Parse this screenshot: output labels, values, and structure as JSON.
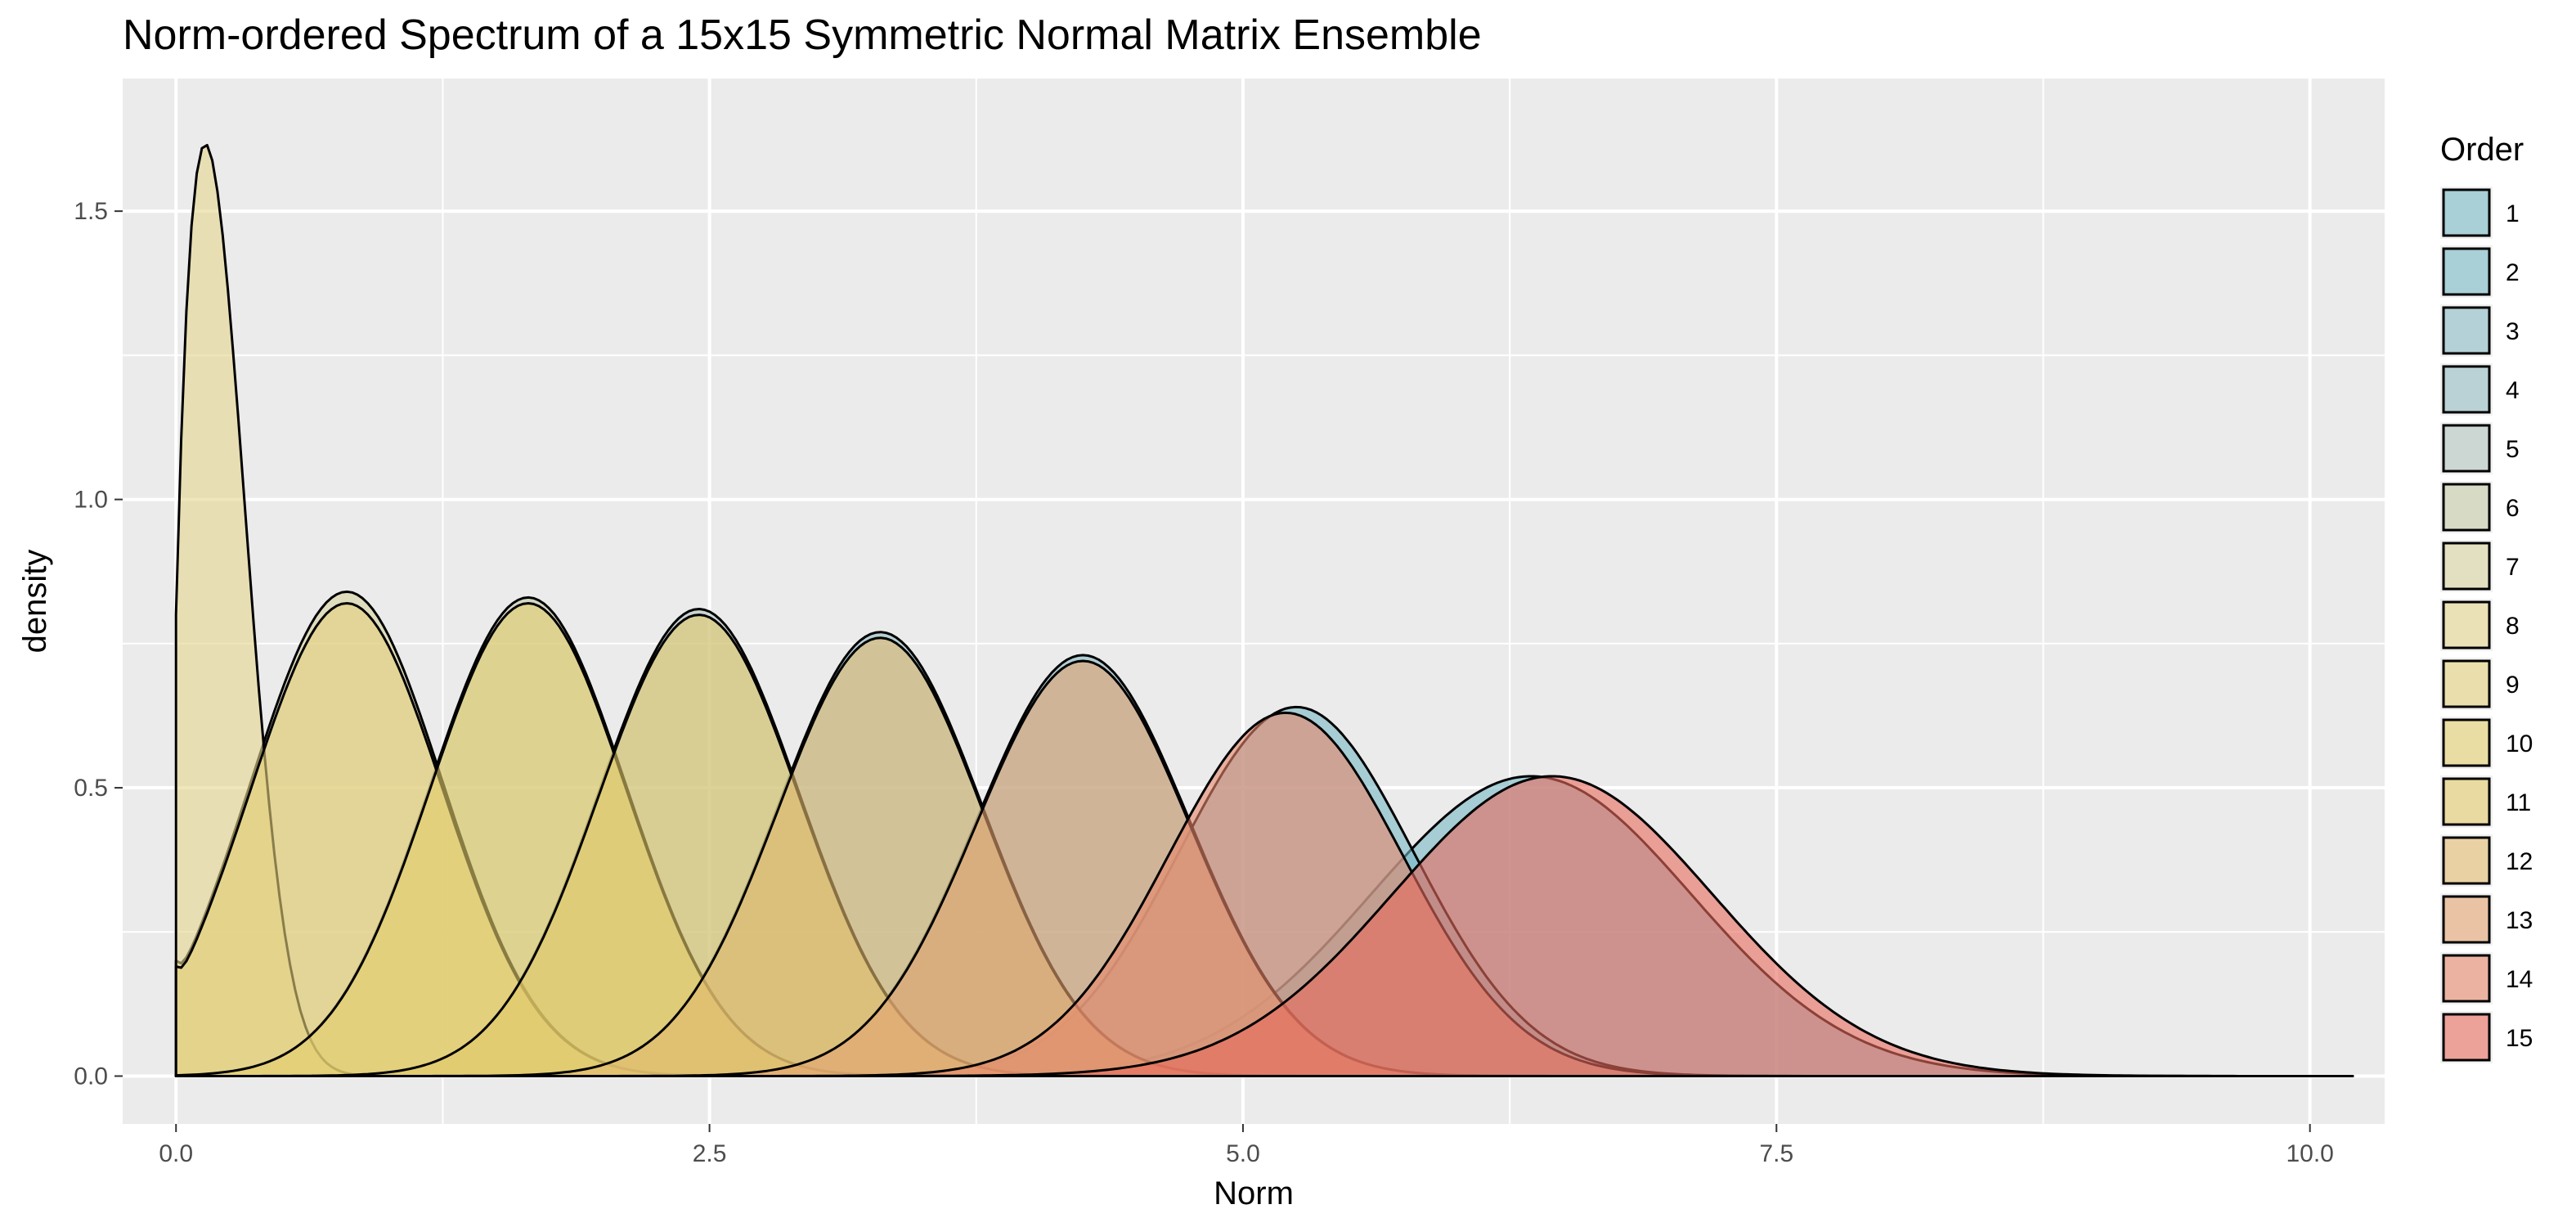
{
  "chart_data": {
    "type": "area",
    "title": "Norm-ordered Spectrum of a 15x15 Symmetric Normal Matrix Ensemble",
    "xlabel": "Norm",
    "ylabel": "density",
    "xlim": [
      -0.25,
      10.35
    ],
    "ylim": [
      -0.083,
      1.73
    ],
    "x_ticks": [
      0.0,
      2.5,
      5.0,
      7.5,
      10.0
    ],
    "x_tick_labels": [
      "0.0",
      "2.5",
      "5.0",
      "7.5",
      "10.0"
    ],
    "y_ticks": [
      0.0,
      0.5,
      1.0,
      1.5
    ],
    "y_tick_labels": [
      "0.0",
      "0.5",
      "1.0",
      "1.5"
    ],
    "grid": true,
    "legend": {
      "title": "Order",
      "position": "right"
    },
    "fill_opacity": 0.6,
    "background": "#ebebeb",
    "series": [
      {
        "name": "1",
        "color": "#78B7C5",
        "peaks": [
          [
            6.35,
            0.52,
            0.75
          ]
        ],
        "density_at_zero": 0
      },
      {
        "name": "2",
        "color": "#78B7C5",
        "peaks": [
          [
            5.25,
            0.64,
            0.55
          ]
        ],
        "density_at_zero": 0
      },
      {
        "name": "3",
        "color": "#88BAC3",
        "peaks": [
          [
            4.25,
            0.73,
            0.5
          ]
        ],
        "density_at_zero": 0
      },
      {
        "name": "4",
        "color": "#95BDC1",
        "peaks": [
          [
            3.3,
            0.77,
            0.48
          ]
        ],
        "density_at_zero": 0
      },
      {
        "name": "5",
        "color": "#B2C5BF",
        "peaks": [
          [
            2.45,
            0.81,
            0.47
          ]
        ],
        "density_at_zero": 0
      },
      {
        "name": "6",
        "color": "#C4CBA8",
        "peaks": [
          [
            1.65,
            0.83,
            0.46
          ]
        ],
        "density_at_zero": 0
      },
      {
        "name": "7",
        "color": "#D8D3A0",
        "peaks": [
          [
            0.8,
            0.84,
            0.45
          ]
        ],
        "density_at_zero": 0.2
      },
      {
        "name": "8",
        "color": "#E6D68E",
        "peaks": [
          [
            0.12,
            1.65,
            0.2
          ]
        ],
        "density_at_zero": 0.8
      },
      {
        "name": "9",
        "color": "#E5D17D",
        "peaks": [
          [
            0.8,
            0.82,
            0.45
          ]
        ],
        "density_at_zero": 0.19
      },
      {
        "name": "10",
        "color": "#E4CE6E",
        "peaks": [
          [
            1.65,
            0.82,
            0.46
          ]
        ],
        "density_at_zero": 0
      },
      {
        "name": "11",
        "color": "#E2C96A",
        "peaks": [
          [
            2.45,
            0.8,
            0.47
          ]
        ],
        "density_at_zero": 0
      },
      {
        "name": "12",
        "color": "#E3BB6F",
        "peaks": [
          [
            3.3,
            0.76,
            0.48
          ]
        ],
        "density_at_zero": 0
      },
      {
        "name": "13",
        "color": "#E5A371",
        "peaks": [
          [
            4.25,
            0.72,
            0.5
          ]
        ],
        "density_at_zero": 0
      },
      {
        "name": "14",
        "color": "#E8876A",
        "peaks": [
          [
            5.2,
            0.63,
            0.55
          ]
        ],
        "density_at_zero": 0
      },
      {
        "name": "15",
        "color": "#E86B5E",
        "peaks": [
          [
            6.45,
            0.52,
            0.75
          ]
        ],
        "density_at_zero": 0
      }
    ]
  }
}
